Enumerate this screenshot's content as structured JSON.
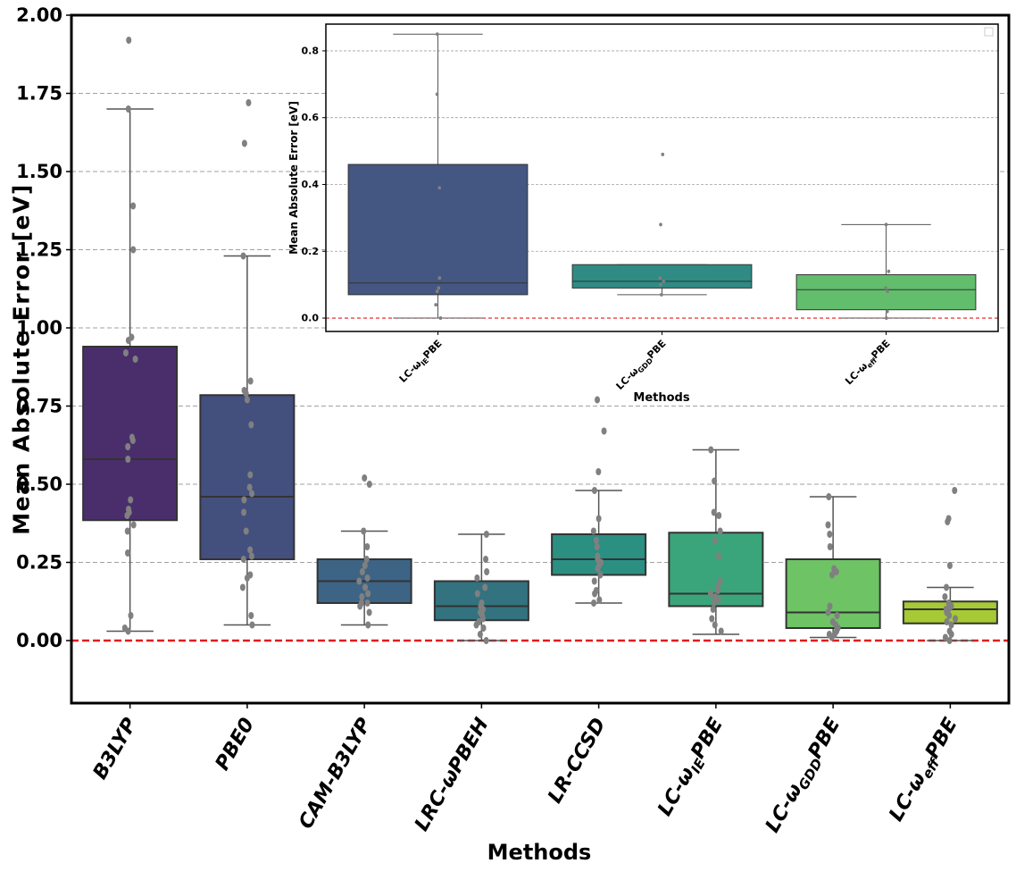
{
  "chart_data": [
    {
      "id": "main",
      "type": "box",
      "xlabel": "Methods",
      "ylabel": "Mean Absolute Error [eV]",
      "ylim": [
        -0.2,
        2.0
      ],
      "yticks": [
        "0.00",
        "0.25",
        "0.50",
        "0.75",
        "1.00",
        "1.25",
        "1.50",
        "1.75",
        "2.00"
      ],
      "grid": "horizontal dashed",
      "reference_line": {
        "y": 0.0,
        "color": "#e41a1c",
        "style": "dashed"
      },
      "categories": [
        {
          "main": "B3LYP",
          "sub": "",
          "tail": ""
        },
        {
          "main": "PBE0",
          "sub": "",
          "tail": ""
        },
        {
          "main": "CAM-B3LYP",
          "sub": "",
          "tail": ""
        },
        {
          "main": "LRC-ωPBEH",
          "sub": "",
          "tail": ""
        },
        {
          "main": "LR-CCSD",
          "sub": "",
          "tail": ""
        },
        {
          "main": "LC-ω",
          "sub": "IE",
          "tail": "PBE"
        },
        {
          "main": "LC-ω",
          "sub": "GDD",
          "tail": "PBE"
        },
        {
          "main": "LC-ω",
          "sub": "eff",
          "tail": "PBE"
        }
      ],
      "series": [
        {
          "color": "#4a2e6c",
          "q1": 0.385,
          "median": 0.58,
          "q3": 0.94,
          "whisker_low": 0.03,
          "whisker_high": 1.7,
          "points": [
            1.92,
            1.7,
            1.39,
            1.25,
            0.97,
            0.96,
            0.92,
            0.9,
            0.65,
            0.64,
            0.62,
            0.58,
            0.45,
            0.42,
            0.41,
            0.4,
            0.37,
            0.35,
            0.28,
            0.08,
            0.04,
            0.03
          ]
        },
        {
          "color": "#434f7d",
          "q1": 0.26,
          "median": 0.46,
          "q3": 0.785,
          "whisker_low": 0.05,
          "whisker_high": 1.23,
          "points": [
            1.72,
            1.59,
            1.23,
            0.83,
            0.8,
            0.79,
            0.77,
            0.69,
            0.53,
            0.49,
            0.47,
            0.45,
            0.41,
            0.35,
            0.29,
            0.27,
            0.26,
            0.21,
            0.2,
            0.17,
            0.08,
            0.05
          ]
        },
        {
          "color": "#3d6485",
          "q1": 0.12,
          "median": 0.19,
          "q3": 0.26,
          "whisker_low": 0.05,
          "whisker_high": 0.35,
          "points": [
            0.52,
            0.5,
            0.35,
            0.3,
            0.26,
            0.24,
            0.22,
            0.2,
            0.19,
            0.17,
            0.15,
            0.14,
            0.12,
            0.12,
            0.11,
            0.09,
            0.05
          ]
        },
        {
          "color": "#33727f",
          "q1": 0.065,
          "median": 0.11,
          "q3": 0.19,
          "whisker_low": 0.0,
          "whisker_high": 0.34,
          "points": [
            0.34,
            0.26,
            0.22,
            0.2,
            0.17,
            0.15,
            0.12,
            0.11,
            0.1,
            0.09,
            0.08,
            0.07,
            0.06,
            0.05,
            0.04,
            0.02,
            0.0
          ]
        },
        {
          "color": "#2b8f82",
          "q1": 0.21,
          "median": 0.26,
          "q3": 0.34,
          "whisker_low": 0.12,
          "whisker_high": 0.48,
          "points": [
            0.77,
            0.67,
            0.54,
            0.48,
            0.39,
            0.35,
            0.32,
            0.3,
            0.27,
            0.26,
            0.25,
            0.24,
            0.23,
            0.21,
            0.19,
            0.16,
            0.15,
            0.13,
            0.12
          ]
        },
        {
          "color": "#3aa57a",
          "q1": 0.11,
          "median": 0.15,
          "q3": 0.345,
          "whisker_low": 0.02,
          "whisker_high": 0.61,
          "points": [
            0.61,
            0.51,
            0.41,
            0.4,
            0.35,
            0.32,
            0.27,
            0.19,
            0.17,
            0.16,
            0.15,
            0.14,
            0.13,
            0.12,
            0.1,
            0.07,
            0.05,
            0.03
          ]
        },
        {
          "color": "#6ec365",
          "q1": 0.04,
          "median": 0.09,
          "q3": 0.26,
          "whisker_low": 0.01,
          "whisker_high": 0.46,
          "points": [
            0.46,
            0.37,
            0.34,
            0.3,
            0.23,
            0.22,
            0.21,
            0.11,
            0.09,
            0.08,
            0.06,
            0.05,
            0.04,
            0.03,
            0.02,
            0.02,
            0.01
          ]
        },
        {
          "color": "#a6c935",
          "q1": 0.055,
          "median": 0.1,
          "q3": 0.125,
          "whisker_low": 0.0,
          "whisker_high": 0.17,
          "points": [
            0.48,
            0.39,
            0.38,
            0.24,
            0.17,
            0.14,
            0.12,
            0.11,
            0.1,
            0.1,
            0.09,
            0.08,
            0.07,
            0.06,
            0.05,
            0.03,
            0.02,
            0.01,
            0.0
          ]
        }
      ]
    },
    {
      "id": "inset",
      "type": "box",
      "xlabel": "Methods",
      "ylabel": "Mean Absolute Error [eV]",
      "ylim": [
        -0.04,
        0.88
      ],
      "yticks": [
        "0.0",
        "0.2",
        "0.4",
        "0.6",
        "0.8"
      ],
      "grid": "horizontal dashed",
      "reference_line": {
        "y": 0.0,
        "color": "#e41a1c",
        "style": "dashed"
      },
      "categories": [
        {
          "main": "LC-ω",
          "sub": "IE",
          "tail": "PBE"
        },
        {
          "main": "LC-ω",
          "sub": "GDD",
          "tail": "PBE"
        },
        {
          "main": "LC-ω",
          "sub": "eff",
          "tail": "PBE"
        }
      ],
      "series": [
        {
          "color": "#445682",
          "q1": 0.07,
          "median": 0.105,
          "q3": 0.46,
          "whisker_low": 0.0,
          "whisker_high": 0.85,
          "points": [
            0.85,
            0.67,
            0.39,
            0.12,
            0.09,
            0.08,
            0.04,
            0.0
          ]
        },
        {
          "color": "#2f8b84",
          "q1": 0.09,
          "median": 0.11,
          "q3": 0.16,
          "whisker_low": 0.07,
          "whisker_high": 0.16,
          "points": [
            0.49,
            0.28,
            0.12,
            0.11,
            0.1,
            0.07
          ]
        },
        {
          "color": "#62bd6c",
          "q1": 0.025,
          "median": 0.085,
          "q3": 0.13,
          "whisker_low": 0.0,
          "whisker_high": 0.28,
          "points": [
            0.28,
            0.14,
            0.09,
            0.08,
            0.02,
            0.0
          ]
        }
      ]
    }
  ],
  "colors": {
    "grid": "#a0a0a0",
    "point": "#808080",
    "whisker": "#555555",
    "reference": "#e41a1c"
  }
}
